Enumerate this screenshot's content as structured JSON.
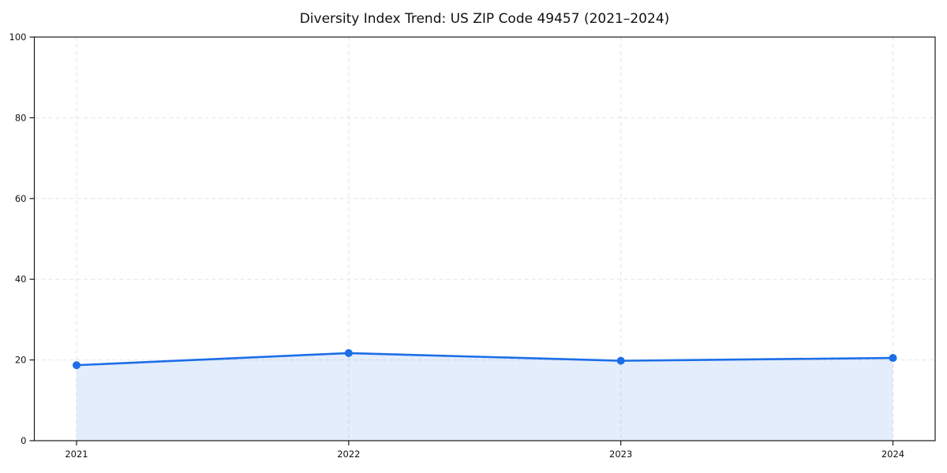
{
  "chart_data": {
    "type": "area",
    "title": "Diversity Index Trend: US ZIP Code 49457 (2021–2024)",
    "x": [
      "2021",
      "2022",
      "2023",
      "2024"
    ],
    "series": [
      {
        "name": "Diversity Index",
        "values": [
          18.7,
          21.7,
          19.8,
          20.5
        ]
      }
    ],
    "xlabel": "",
    "ylabel": "",
    "ylim": [
      0,
      100
    ],
    "yticks": [
      0,
      20,
      40,
      60,
      80,
      100
    ],
    "grid": true,
    "grid_style": "dashed",
    "legend_position": "none",
    "marker": "circle",
    "colors": {
      "line": "#1c6ee8",
      "marker": "#1c6ee8",
      "fill": "rgba(28,110,232,0.12)",
      "grid": "#e3e3e3",
      "axis": "#1a1a1a",
      "text": "#111111",
      "background": "#ffffff"
    }
  }
}
